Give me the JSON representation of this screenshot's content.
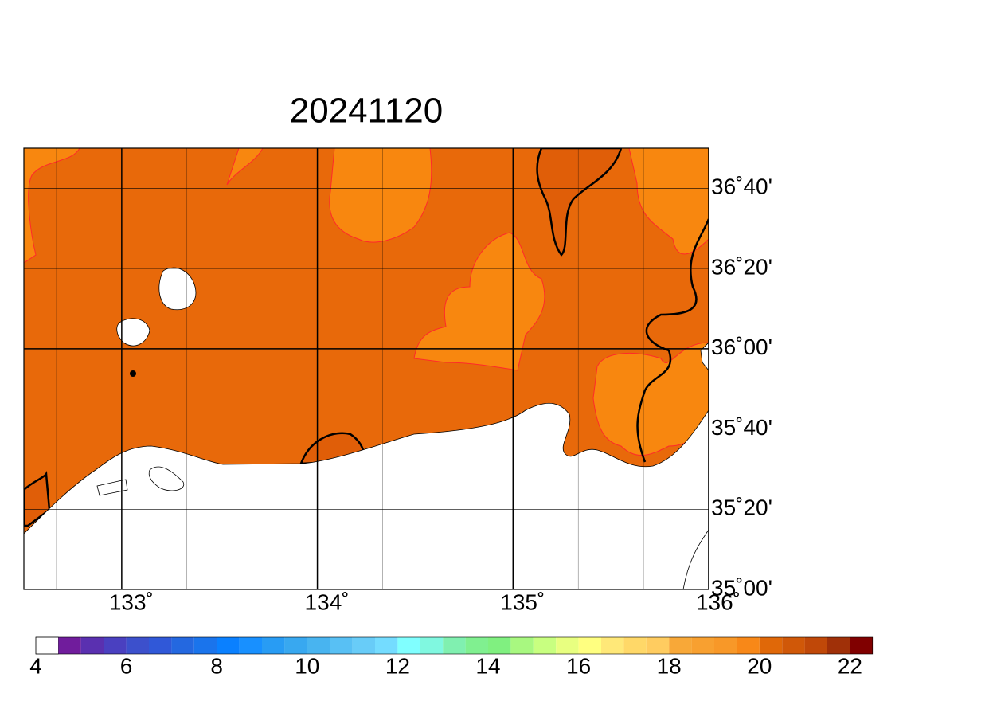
{
  "title": "20241120",
  "map": {
    "xlim": [
      132.5,
      136
    ],
    "ylim": [
      35,
      36.8333
    ],
    "xticks": [
      {
        "value": 133,
        "label": "133˚"
      },
      {
        "value": 134,
        "label": "134˚"
      },
      {
        "value": 135,
        "label": "135˚"
      },
      {
        "value": 136,
        "label": "136˚"
      }
    ],
    "yticks": [
      {
        "value": 35,
        "label": "35˚00'"
      },
      {
        "value": 35.3333,
        "label": "35˚20'"
      },
      {
        "value": 35.6667,
        "label": "35˚40'"
      },
      {
        "value": 36,
        "label": "36˚00'"
      },
      {
        "value": 36.3333,
        "label": "36˚20'"
      },
      {
        "value": 36.6667,
        "label": "36˚40'"
      }
    ],
    "grid": true
  },
  "colorbar": {
    "bins": [
      4,
      4.5,
      5,
      5.5,
      6,
      6.5,
      7,
      7.5,
      8,
      8.5,
      9,
      9.5,
      10,
      10.5,
      11,
      11.5,
      12,
      12.5,
      13,
      13.5,
      14,
      14.5,
      15,
      15.5,
      16,
      16.5,
      17,
      17.5,
      18,
      18.5,
      19,
      19.5,
      20,
      20.5,
      21,
      21.5,
      22,
      22.5
    ],
    "colors": [
      "#ffffff",
      "#701c9c",
      "#5a30b0",
      "#4a40c0",
      "#3c50cc",
      "#3058d8",
      "#2468e0",
      "#1a74ec",
      "#0a80ff",
      "#1890ff",
      "#289cf4",
      "#38a8f0",
      "#48b4f0",
      "#58c0f4",
      "#68ccf8",
      "#74dcff",
      "#80ffff",
      "#80f8e0",
      "#80f0b0",
      "#80f090",
      "#80f080",
      "#a8f880",
      "#c8ff80",
      "#e8ff80",
      "#ffff80",
      "#ffe878",
      "#ffd868",
      "#ffcc60",
      "#f8a838",
      "#f8a030",
      "#f89828",
      "#f88818",
      "#e06808",
      "#d05808",
      "#c04808",
      "#a03008",
      "#800000"
    ],
    "ticks": [
      4,
      6,
      8,
      10,
      12,
      14,
      16,
      18,
      20,
      22
    ]
  }
}
